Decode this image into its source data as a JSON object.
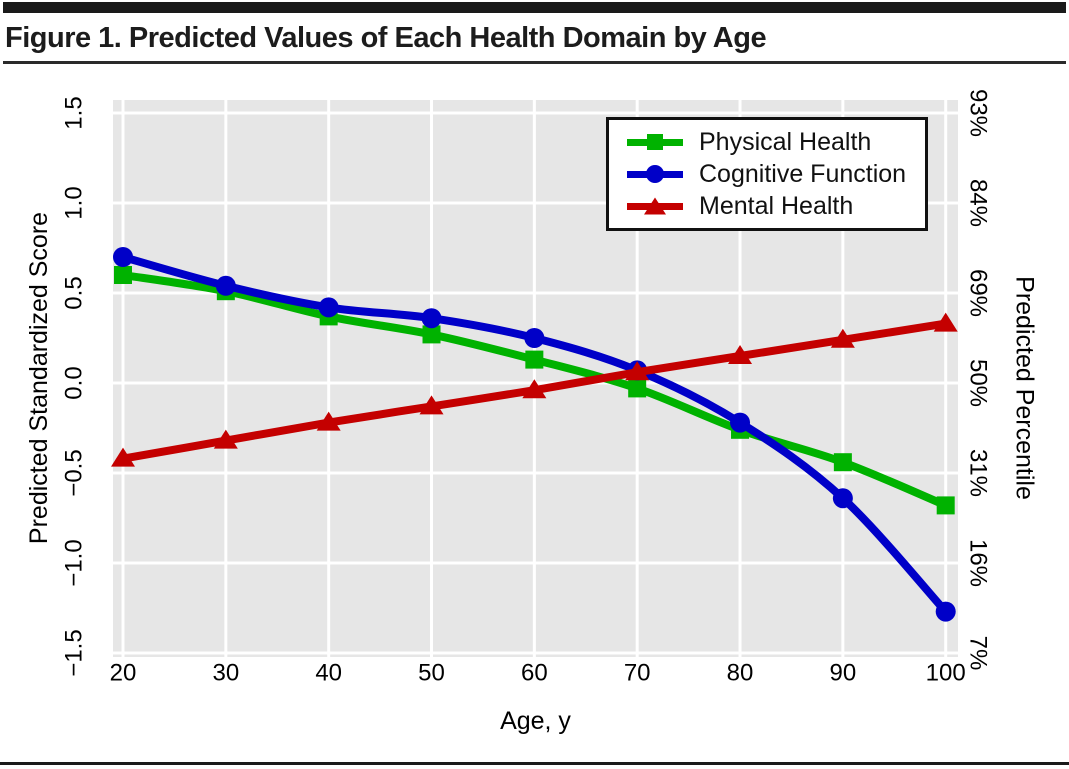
{
  "figure": {
    "title": "Figure 1. Predicted Values of Each Health Domain by Age"
  },
  "chart_data": {
    "type": "line",
    "x": [
      20,
      30,
      40,
      50,
      60,
      70,
      80,
      90,
      100
    ],
    "x_tick_labels": [
      "20",
      "30",
      "40",
      "50",
      "60",
      "70",
      "80",
      "90",
      "100"
    ],
    "xlabel": "Age, y",
    "ylabel_left": "Predicted Standardized Score",
    "ylabel_right": "Predicted Percentile",
    "xlim": [
      19,
      101.2
    ],
    "ylim_left": [
      -1.57,
      1.57
    ],
    "y_ticks": [
      1.5,
      1.0,
      0.5,
      0.0,
      -0.5,
      -1.0,
      -1.5
    ],
    "y_tick_labels_left": [
      "1.5",
      "1.0",
      "0.5",
      "0.0",
      "−0.5",
      "−1.0",
      "−1.5"
    ],
    "y_tick_labels_right": [
      "93%",
      "84%",
      "69%",
      "50%",
      "31%",
      "16%",
      "7%"
    ],
    "grid": true,
    "plot_bg": "#e6e6e6",
    "grid_color": "#ffffff",
    "legend_position": "top-right",
    "series": [
      {
        "name": "Physical Health",
        "color": "#00b200",
        "marker": "square",
        "values": [
          0.6,
          0.51,
          0.37,
          0.27,
          0.13,
          -0.03,
          -0.26,
          -0.44,
          -0.68
        ]
      },
      {
        "name": "Cognitive Function",
        "color": "#0000c8",
        "marker": "circle",
        "values": [
          0.7,
          0.54,
          0.42,
          0.36,
          0.25,
          0.07,
          -0.22,
          -0.64,
          -1.27
        ]
      },
      {
        "name": "Mental Health",
        "color": "#c40000",
        "marker": "triangle",
        "values": [
          -0.42,
          -0.32,
          -0.22,
          -0.13,
          -0.04,
          0.06,
          0.15,
          0.24,
          0.33
        ]
      }
    ]
  }
}
